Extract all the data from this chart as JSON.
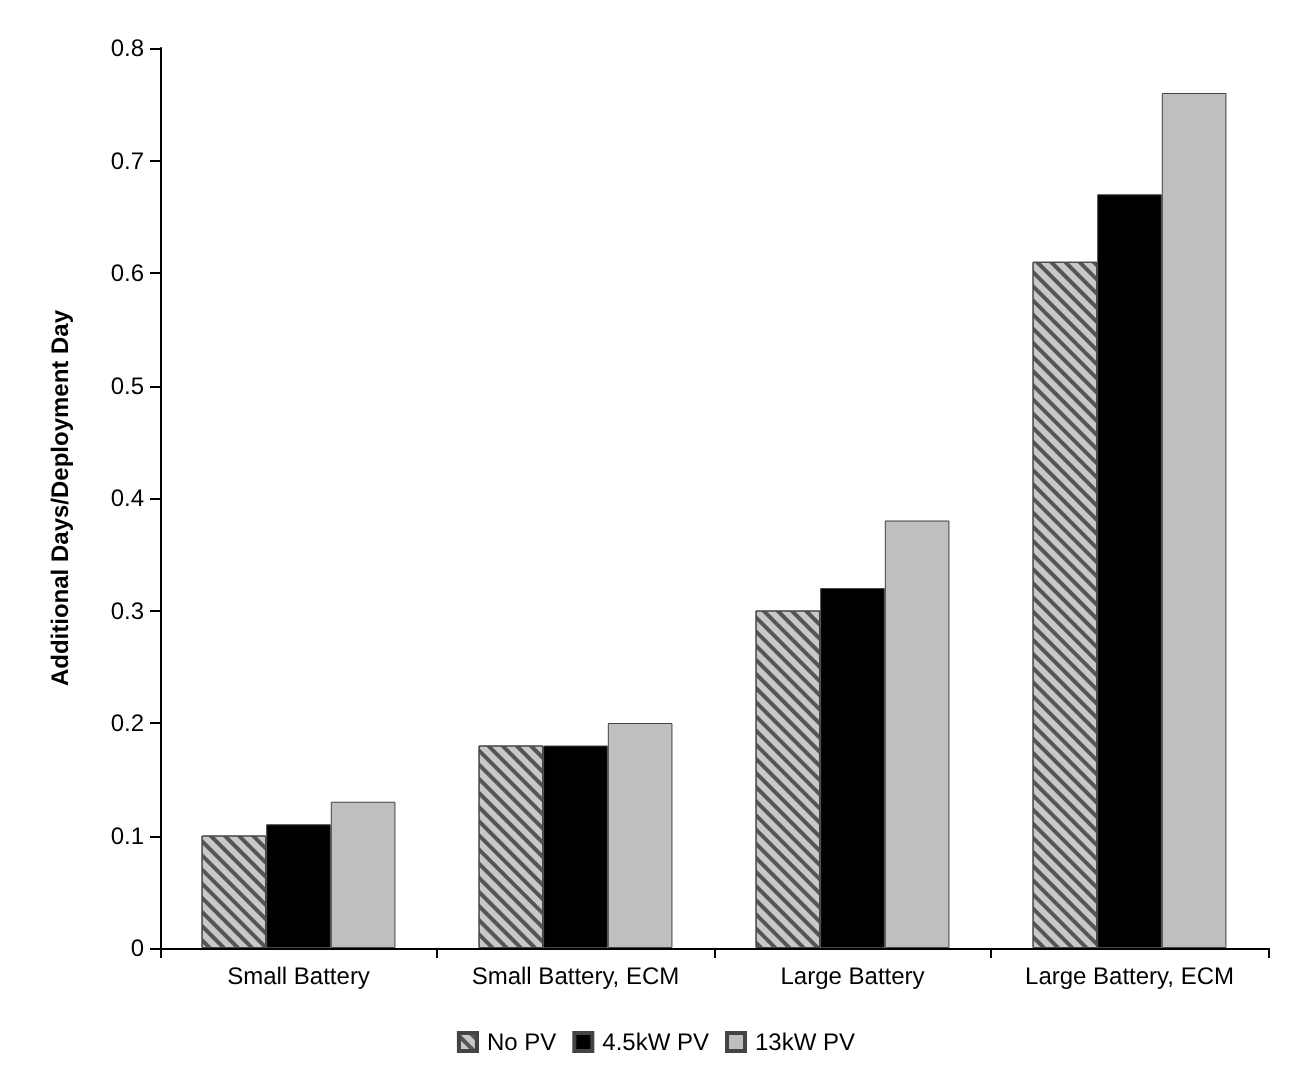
{
  "chart_data": {
    "type": "bar",
    "ylabel": "Additional Days/Deployment Day",
    "categories": [
      "Small Battery",
      "Small Battery, ECM",
      "Large Battery",
      "Large Battery, ECM"
    ],
    "series": [
      {
        "name": "No PV",
        "color": "#c8c8c8",
        "values": [
          0.1,
          0.18,
          0.3,
          0.61
        ]
      },
      {
        "name": "4.5kW PV",
        "color": "#000000",
        "values": [
          0.11,
          0.18,
          0.32,
          0.67
        ]
      },
      {
        "name": "13kW PV",
        "color": "#bfbfbf",
        "values": [
          0.13,
          0.2,
          0.38,
          0.76
        ]
      }
    ],
    "ylim": [
      0,
      0.8
    ],
    "yticks": [
      0,
      0.1,
      0.2,
      0.3,
      0.4,
      0.5,
      0.6,
      0.7,
      0.8
    ],
    "grid": false,
    "legend": "bottom"
  }
}
